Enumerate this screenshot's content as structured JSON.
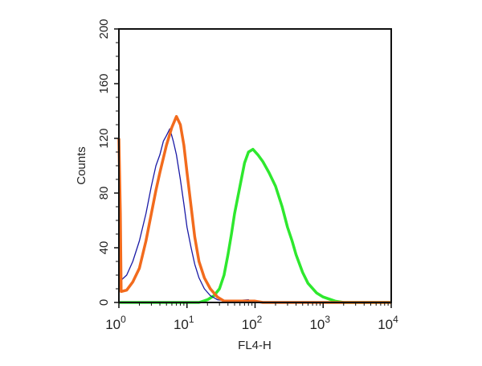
{
  "chart_data": {
    "type": "line",
    "title": "",
    "xlabel": "FL4-H",
    "ylabel": "Counts",
    "xscale": "log",
    "xlim": [
      1,
      10000
    ],
    "ylim": [
      0,
      200
    ],
    "x_ticks": [
      {
        "base": "10",
        "exp": "0"
      },
      {
        "base": "10",
        "exp": "1"
      },
      {
        "base": "10",
        "exp": "2"
      },
      {
        "base": "10",
        "exp": "3"
      },
      {
        "base": "10",
        "exp": "4"
      }
    ],
    "y_ticks": [
      "0",
      "40",
      "80",
      "120",
      "160",
      "200"
    ],
    "grid": false,
    "legend": "none",
    "series": [
      {
        "name": "blue",
        "color": "#1a1aa6",
        "points": [
          [
            1,
            200
          ],
          [
            1.01,
            15
          ],
          [
            1.3,
            20
          ],
          [
            1.6,
            30
          ],
          [
            2,
            45
          ],
          [
            2.5,
            65
          ],
          [
            3,
            85
          ],
          [
            3.5,
            100
          ],
          [
            4,
            108
          ],
          [
            4.5,
            118
          ],
          [
            5,
            122
          ],
          [
            5.6,
            127
          ],
          [
            6.3,
            118
          ],
          [
            7,
            108
          ],
          [
            8,
            90
          ],
          [
            9,
            72
          ],
          [
            10,
            55
          ],
          [
            11.5,
            40
          ],
          [
            13,
            28
          ],
          [
            15,
            18
          ],
          [
            18,
            10
          ],
          [
            22,
            5
          ],
          [
            28,
            2
          ],
          [
            40,
            1
          ],
          [
            80,
            2
          ],
          [
            90,
            0
          ],
          [
            10000,
            0
          ]
        ]
      },
      {
        "name": "orange",
        "color": "#f26b1d",
        "points": [
          [
            1,
            120
          ],
          [
            1.05,
            65
          ],
          [
            1.08,
            8
          ],
          [
            1.3,
            9
          ],
          [
            1.6,
            15
          ],
          [
            2,
            25
          ],
          [
            2.5,
            45
          ],
          [
            3,
            65
          ],
          [
            3.5,
            82
          ],
          [
            4,
            95
          ],
          [
            5,
            115
          ],
          [
            6,
            128
          ],
          [
            7,
            136
          ],
          [
            8,
            130
          ],
          [
            9,
            115
          ],
          [
            10,
            95
          ],
          [
            11.5,
            70
          ],
          [
            13,
            48
          ],
          [
            15,
            30
          ],
          [
            18,
            18
          ],
          [
            22,
            10
          ],
          [
            28,
            4
          ],
          [
            35,
            1
          ],
          [
            100,
            1
          ],
          [
            130,
            0
          ],
          [
            10000,
            0
          ]
        ]
      },
      {
        "name": "green",
        "color": "#2ee82e",
        "points": [
          [
            1,
            0
          ],
          [
            15,
            0
          ],
          [
            20,
            2
          ],
          [
            25,
            5
          ],
          [
            30,
            10
          ],
          [
            35,
            20
          ],
          [
            40,
            35
          ],
          [
            45,
            50
          ],
          [
            50,
            65
          ],
          [
            60,
            85
          ],
          [
            70,
            102
          ],
          [
            80,
            110
          ],
          [
            93,
            112
          ],
          [
            110,
            108
          ],
          [
            130,
            103
          ],
          [
            160,
            95
          ],
          [
            200,
            85
          ],
          [
            250,
            70
          ],
          [
            300,
            55
          ],
          [
            350,
            45
          ],
          [
            400,
            35
          ],
          [
            500,
            22
          ],
          [
            600,
            14
          ],
          [
            800,
            7
          ],
          [
            1000,
            4
          ],
          [
            1500,
            1
          ],
          [
            2000,
            0
          ],
          [
            10000,
            0
          ]
        ]
      }
    ]
  }
}
